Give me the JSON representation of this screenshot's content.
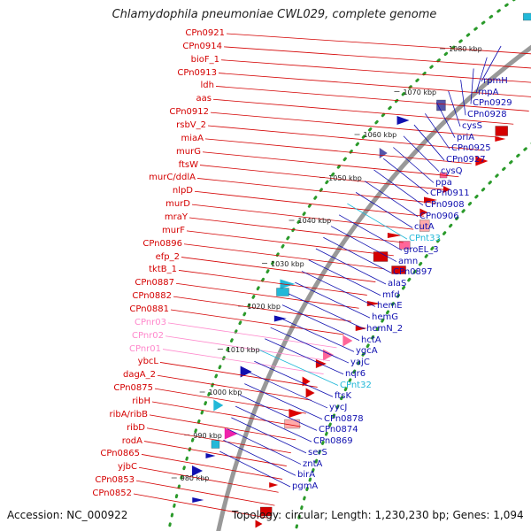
{
  "title": "Chlamydophila pneumoniae CWL029, complete genome",
  "footer": {
    "accession": "Accession: NC_000922",
    "topology": "Topology: circular; Length: 1,230,230 bp; Genes: 1,094"
  },
  "colors": {
    "left_gene": "#d40000",
    "left_rna": "#ff88cc",
    "right_gene": "#1010b0",
    "right_rna": "#22b8d8",
    "backbone": "#999999",
    "dots": "#2a9a2a"
  },
  "ticks": [
    "1080 kbp",
    "1070 kbp",
    "1060 kbp",
    "1050 kbp",
    "1040 kbp",
    "1030 kbp",
    "1020 kbp",
    "1010 kbp",
    "1000 kbp",
    "990 kbp",
    "980 kbp"
  ],
  "left_labels": [
    {
      "text": "CPn0921",
      "kind": "gene"
    },
    {
      "text": "CPn0914",
      "kind": "gene"
    },
    {
      "text": "bioF_1",
      "kind": "gene"
    },
    {
      "text": "CPn0913",
      "kind": "gene"
    },
    {
      "text": "ldh",
      "kind": "gene"
    },
    {
      "text": "aas",
      "kind": "gene"
    },
    {
      "text": "CPn0912",
      "kind": "gene"
    },
    {
      "text": "rsbV_2",
      "kind": "gene"
    },
    {
      "text": "miaA",
      "kind": "gene"
    },
    {
      "text": "murG",
      "kind": "gene"
    },
    {
      "text": "ftsW",
      "kind": "gene"
    },
    {
      "text": "murC/ddlA",
      "kind": "gene"
    },
    {
      "text": "nlpD",
      "kind": "gene"
    },
    {
      "text": "murD",
      "kind": "gene"
    },
    {
      "text": "mraY",
      "kind": "gene"
    },
    {
      "text": "murF",
      "kind": "gene"
    },
    {
      "text": "CPn0896",
      "kind": "gene"
    },
    {
      "text": "efp_2",
      "kind": "gene"
    },
    {
      "text": "tktB_1",
      "kind": "gene"
    },
    {
      "text": "CPn0887",
      "kind": "gene"
    },
    {
      "text": "CPn0882",
      "kind": "gene"
    },
    {
      "text": "CPn0881",
      "kind": "gene"
    },
    {
      "text": "CPnr03",
      "kind": "rna"
    },
    {
      "text": "CPnr02",
      "kind": "rna"
    },
    {
      "text": "CPnr01",
      "kind": "rna"
    },
    {
      "text": "ybcL",
      "kind": "gene"
    },
    {
      "text": "dagA_2",
      "kind": "gene"
    },
    {
      "text": "CPn0875",
      "kind": "gene"
    },
    {
      "text": "ribH",
      "kind": "gene"
    },
    {
      "text": "ribA/ribB",
      "kind": "gene"
    },
    {
      "text": "ribD",
      "kind": "gene"
    },
    {
      "text": "rodA",
      "kind": "gene"
    },
    {
      "text": "CPn0865",
      "kind": "gene"
    },
    {
      "text": "yjbC",
      "kind": "gene"
    },
    {
      "text": "CPn0853",
      "kind": "gene"
    },
    {
      "text": "CPn0852",
      "kind": "gene"
    }
  ],
  "right_labels": [
    {
      "text": "rpmH",
      "kind": "gene"
    },
    {
      "text": "rnpA",
      "kind": "gene"
    },
    {
      "text": "CPn0929",
      "kind": "gene"
    },
    {
      "text": "CPn0928",
      "kind": "gene"
    },
    {
      "text": "cysS",
      "kind": "gene"
    },
    {
      "text": "priA",
      "kind": "gene"
    },
    {
      "text": "CPn0925",
      "kind": "gene"
    },
    {
      "text": "CPn0927",
      "kind": "gene"
    },
    {
      "text": "cysQ",
      "kind": "gene"
    },
    {
      "text": "ppa",
      "kind": "gene"
    },
    {
      "text": "CPn0911",
      "kind": "gene"
    },
    {
      "text": "CPn0908",
      "kind": "gene"
    },
    {
      "text": "CPn0906",
      "kind": "gene"
    },
    {
      "text": "cutA",
      "kind": "gene"
    },
    {
      "text": "CPnt33",
      "kind": "rna"
    },
    {
      "text": "groEL_3",
      "kind": "gene"
    },
    {
      "text": "amn",
      "kind": "gene"
    },
    {
      "text": "CPn0897",
      "kind": "gene"
    },
    {
      "text": "alaS",
      "kind": "gene"
    },
    {
      "text": "mfd",
      "kind": "gene"
    },
    {
      "text": "hemE",
      "kind": "gene"
    },
    {
      "text": "hemG",
      "kind": "gene"
    },
    {
      "text": "hemN_2",
      "kind": "gene"
    },
    {
      "text": "hctA",
      "kind": "gene"
    },
    {
      "text": "ygcA",
      "kind": "gene"
    },
    {
      "text": "yajC",
      "kind": "gene"
    },
    {
      "text": "nqr6",
      "kind": "gene"
    },
    {
      "text": "CPnt32",
      "kind": "rna"
    },
    {
      "text": "ftsK",
      "kind": "gene"
    },
    {
      "text": "yycJ",
      "kind": "gene"
    },
    {
      "text": "CPn0878",
      "kind": "gene"
    },
    {
      "text": "CPn0874",
      "kind": "gene"
    },
    {
      "text": "CPn0869",
      "kind": "gene"
    },
    {
      "text": "serS",
      "kind": "gene"
    },
    {
      "text": "zntA",
      "kind": "gene"
    },
    {
      "text": "birA",
      "kind": "gene"
    },
    {
      "text": "pgmA",
      "kind": "gene"
    }
  ]
}
